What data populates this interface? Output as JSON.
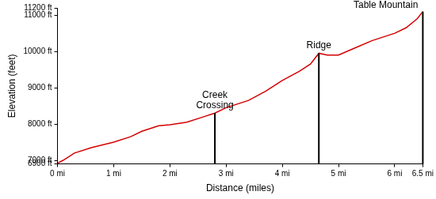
{
  "chart_data": {
    "type": "line",
    "x_label": "Distance (miles)",
    "y_label": "Elevation (feet)",
    "color": "#d40000",
    "grid": false,
    "legend": "none",
    "x": [
      0,
      0.1,
      0.3,
      0.6,
      1.0,
      1.3,
      1.5,
      1.8,
      2.0,
      2.3,
      2.6,
      2.8,
      3.0,
      3.4,
      3.7,
      4.0,
      4.3,
      4.5,
      4.65,
      4.8,
      5.0,
      5.3,
      5.6,
      6.0,
      6.2,
      6.4,
      6.5
    ],
    "values": [
      6920,
      7000,
      7200,
      7350,
      7500,
      7650,
      7800,
      7950,
      7980,
      8050,
      8200,
      8300,
      8450,
      8650,
      8900,
      9200,
      9450,
      9650,
      9950,
      9900,
      9900,
      10100,
      10300,
      10500,
      10650,
      10900,
      11100
    ],
    "xlim": [
      0,
      6.5
    ],
    "xticks": [
      {
        "value": 0,
        "label": "0 mi"
      },
      {
        "value": 1,
        "label": "1 mi"
      },
      {
        "value": 2,
        "label": "2 mi"
      },
      {
        "value": 3,
        "label": "3 mi"
      },
      {
        "value": 4,
        "label": "4 mi"
      },
      {
        "value": 5,
        "label": "5 mi"
      },
      {
        "value": 6,
        "label": "6 mi"
      },
      {
        "value": 6.5,
        "label": "6.5 mi"
      }
    ],
    "ylim": [
      6900,
      11200
    ],
    "yticks": [
      {
        "value": 6900,
        "label": "6900 ft"
      },
      {
        "value": 7000,
        "label": "7000 ft"
      },
      {
        "value": 8000,
        "label": "8000 ft"
      },
      {
        "value": 9000,
        "label": "9000 ft"
      },
      {
        "value": 10000,
        "label": "10000 ft"
      },
      {
        "value": 11000,
        "label": "11000 ft"
      },
      {
        "value": 11200,
        "label": "11200 ft"
      }
    ],
    "annotations": [
      {
        "x": 2.8,
        "y": 8300,
        "label": [
          "Creek",
          "Crossing"
        ]
      },
      {
        "x": 4.65,
        "y": 9950,
        "label": [
          "Ridge"
        ]
      },
      {
        "x": 6.5,
        "y": 11100,
        "label": [
          "Table Mountain"
        ]
      }
    ]
  }
}
